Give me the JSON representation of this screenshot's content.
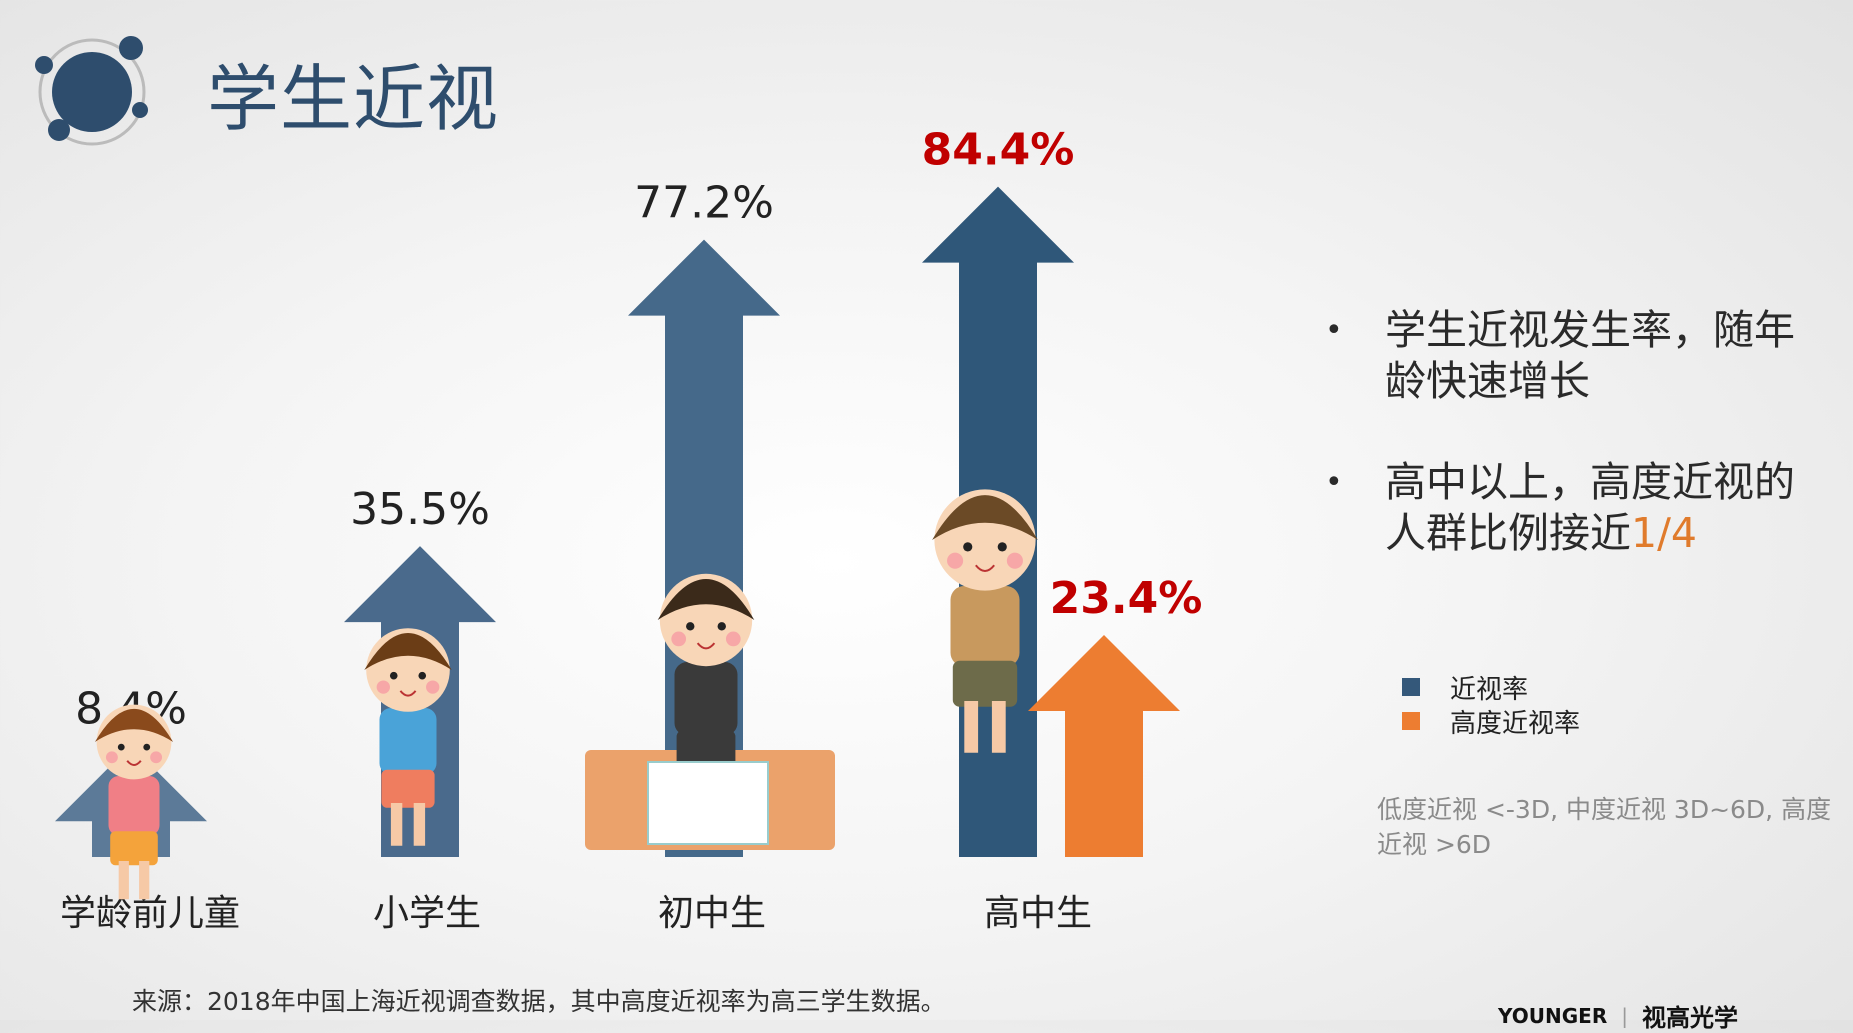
{
  "title": "学生近视",
  "chart_data": {
    "type": "bar",
    "style": "arrows",
    "categories": [
      "学龄前儿童",
      "小学生",
      "初中生",
      "高中生"
    ],
    "series": [
      {
        "name": "近视率",
        "values": [
          8.4,
          35.5,
          77.2,
          84.4
        ],
        "labels": [
          "8.4%",
          "35.5%",
          "77.2%",
          "84.4%"
        ],
        "color": "#34587a"
      },
      {
        "name": "高度近视率",
        "values": [
          null,
          null,
          null,
          23.4
        ],
        "labels": [
          "",
          "",
          "",
          "23.4%"
        ],
        "color": "#ed7d31"
      }
    ],
    "highlight_label_color": "#c00000",
    "legend_position": "right"
  },
  "bullets": [
    {
      "text": "学生近视发生率，随年龄快速增长"
    },
    {
      "text": "高中以上，高度近视的人群比例接近",
      "highlight": "1/4"
    }
  ],
  "note": "低度近视 <-3D, 中度近视 3D~6D, 高度近视 >6D",
  "source": "来源：2018年中国上海近视调查数据，其中高度近视率为高三学生数据。",
  "brand": {
    "latin": "YOUNGER",
    "cjk": "视高光学"
  }
}
